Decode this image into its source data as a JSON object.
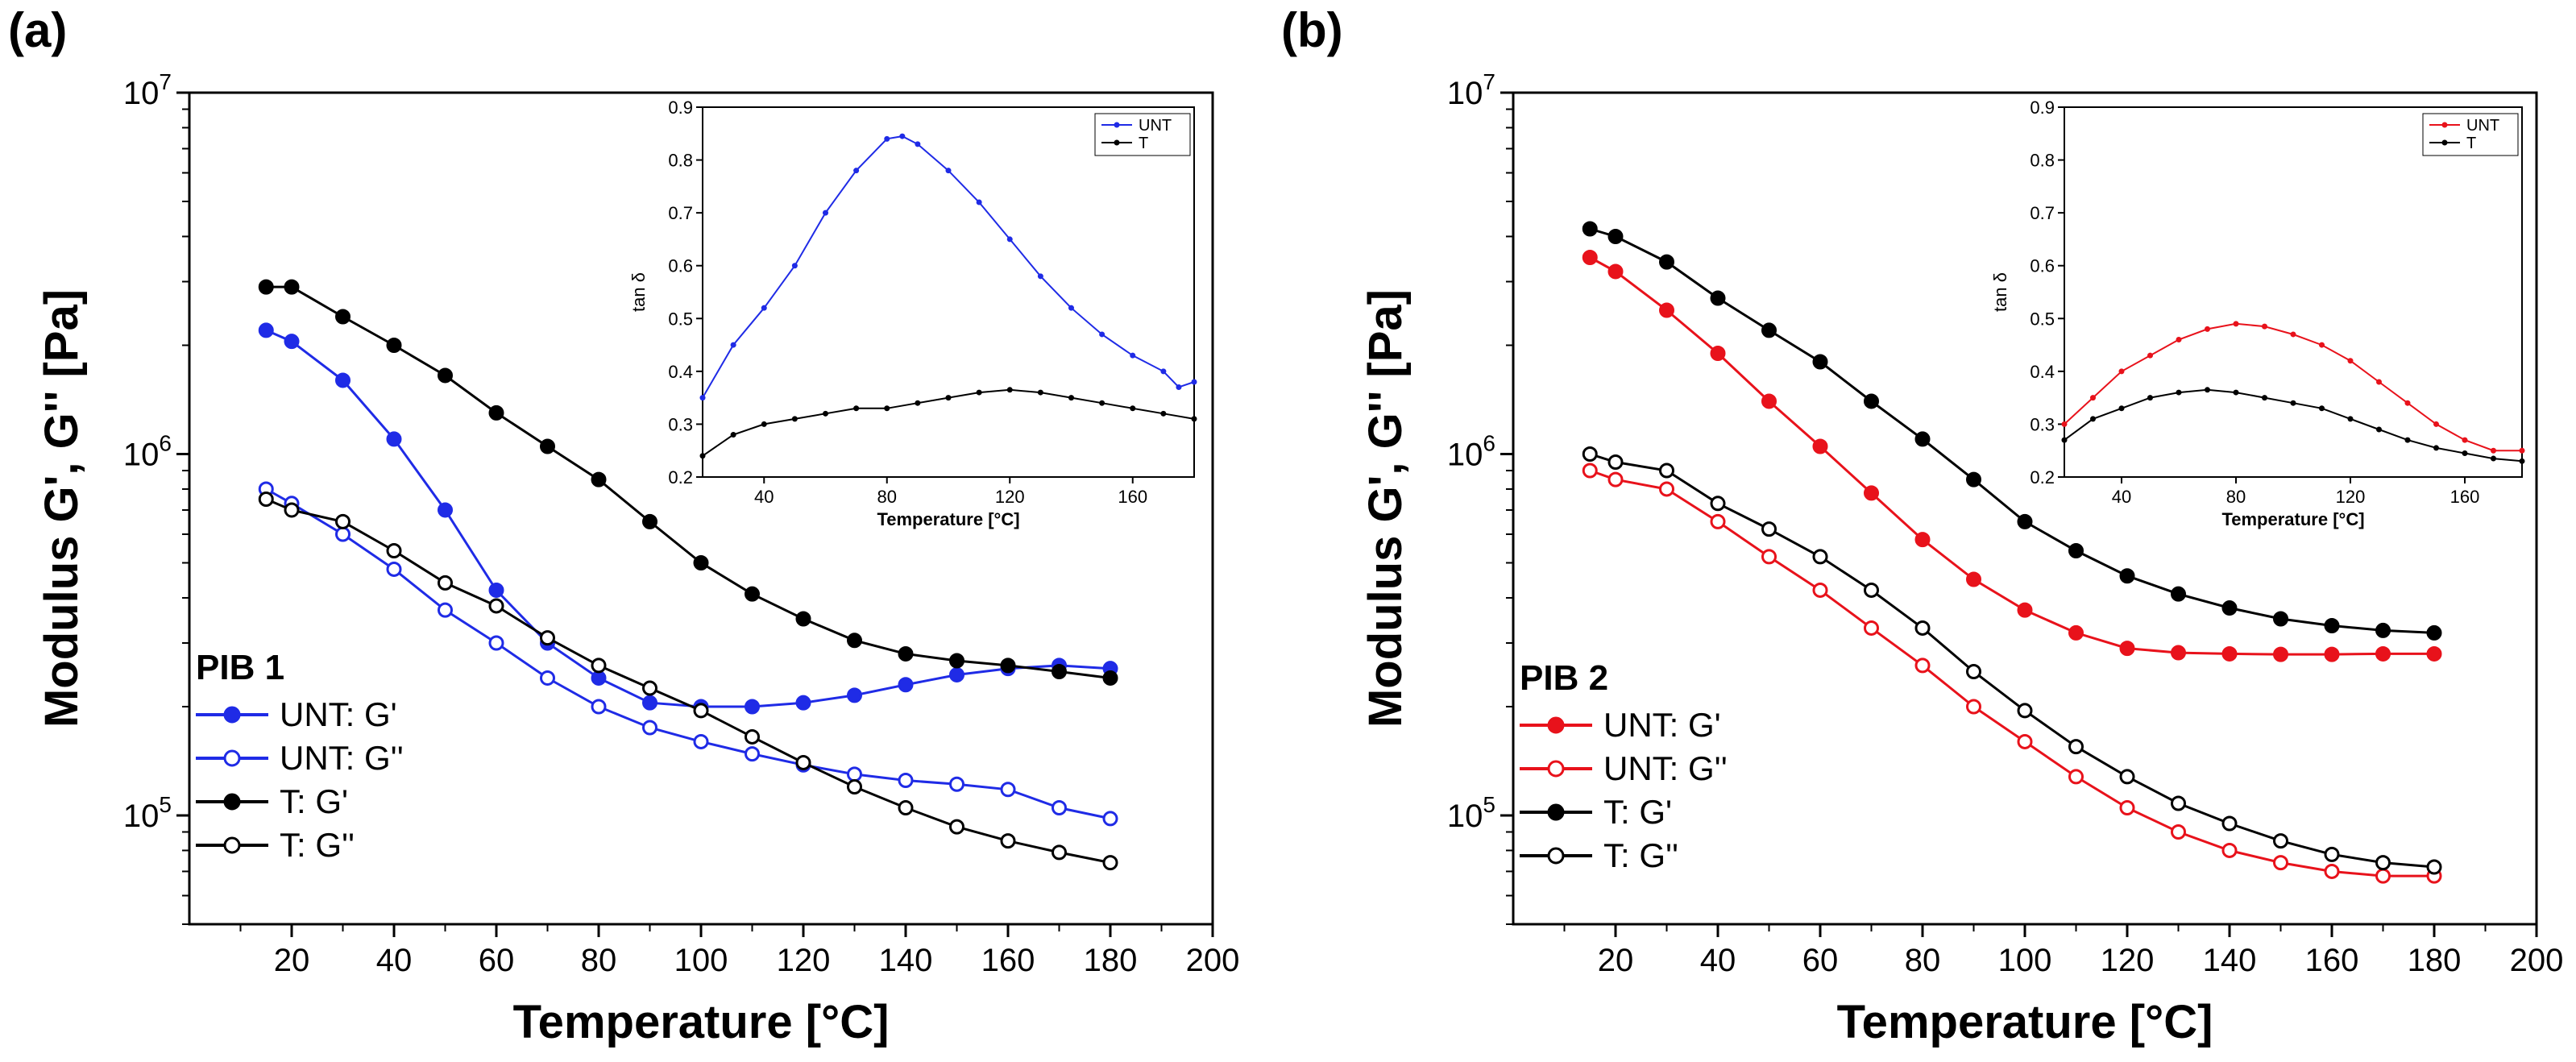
{
  "chart_data": [
    {
      "type": "line",
      "panel_label": "(a)",
      "title": "",
      "legend_title": "PIB 1",
      "xlabel": "Temperature [°C]",
      "ylabel": "Modulus G', G'' [Pa]",
      "xlim": [
        0,
        200
      ],
      "ylim": [
        50000,
        10000000
      ],
      "yscale": "log",
      "x_ticks": [
        "20",
        "40",
        "60",
        "80",
        "100",
        "120",
        "140",
        "160",
        "180",
        "200"
      ],
      "y_ticks": [
        {
          "value": 100000,
          "base": "10",
          "exp": "5"
        },
        {
          "value": 1000000,
          "base": "10",
          "exp": "6"
        },
        {
          "value": 10000000,
          "base": "10",
          "exp": "7"
        }
      ],
      "legend_position": "bottom-left",
      "series": [
        {
          "name": "UNT: G'",
          "color": "#1f2be6",
          "marker": "filled",
          "x": [
            15,
            20,
            30,
            40,
            50,
            60,
            70,
            80,
            90,
            100,
            110,
            120,
            130,
            140,
            150,
            160,
            170,
            180
          ],
          "values": [
            2200000,
            2050000,
            1600000,
            1100000,
            700000,
            420000,
            300000,
            240000,
            205000,
            200000,
            200000,
            205000,
            215000,
            230000,
            245000,
            255000,
            260000,
            255000
          ]
        },
        {
          "name": "UNT: G''",
          "color": "#1f2be6",
          "marker": "open",
          "x": [
            15,
            20,
            30,
            40,
            50,
            60,
            70,
            80,
            90,
            100,
            110,
            120,
            130,
            140,
            150,
            160,
            170,
            180
          ],
          "values": [
            800000,
            730000,
            600000,
            480000,
            370000,
            300000,
            240000,
            200000,
            175000,
            160000,
            148000,
            138000,
            130000,
            125000,
            122000,
            118000,
            105000,
            98000
          ]
        },
        {
          "name": "T: G'",
          "color": "#000000",
          "marker": "filled",
          "x": [
            15,
            20,
            30,
            40,
            50,
            60,
            70,
            80,
            90,
            100,
            110,
            120,
            130,
            140,
            150,
            160,
            170,
            180
          ],
          "values": [
            2900000,
            2900000,
            2400000,
            2000000,
            1650000,
            1300000,
            1050000,
            850000,
            650000,
            500000,
            410000,
            350000,
            305000,
            280000,
            268000,
            260000,
            250000,
            240000
          ]
        },
        {
          "name": "T: G''",
          "color": "#000000",
          "marker": "open",
          "x": [
            15,
            20,
            30,
            40,
            50,
            60,
            70,
            80,
            90,
            100,
            110,
            120,
            130,
            140,
            150,
            160,
            170,
            180
          ],
          "values": [
            750000,
            700000,
            650000,
            540000,
            440000,
            380000,
            310000,
            260000,
            225000,
            195000,
            165000,
            140000,
            120000,
            105000,
            93000,
            85000,
            79000,
            74000
          ]
        }
      ],
      "inset": {
        "xlabel": "Temperature [°C]",
        "ylabel": "tan δ",
        "xlim": [
          20,
          180
        ],
        "ylim": [
          0.2,
          0.9
        ],
        "x_ticks": [
          "40",
          "80",
          "120",
          "160"
        ],
        "y_ticks": [
          "0.2",
          "0.3",
          "0.4",
          "0.5",
          "0.6",
          "0.7",
          "0.8",
          "0.9"
        ],
        "series": [
          {
            "name": "UNT",
            "color": "#1f2be6",
            "x": [
              20,
              30,
              40,
              50,
              60,
              70,
              80,
              85,
              90,
              100,
              110,
              120,
              130,
              140,
              150,
              160,
              170,
              175,
              180
            ],
            "values": [
              0.35,
              0.45,
              0.52,
              0.6,
              0.7,
              0.78,
              0.84,
              0.845,
              0.83,
              0.78,
              0.72,
              0.65,
              0.58,
              0.52,
              0.47,
              0.43,
              0.4,
              0.37,
              0.38
            ]
          },
          {
            "name": "T",
            "color": "#000000",
            "x": [
              20,
              30,
              40,
              50,
              60,
              70,
              80,
              90,
              100,
              110,
              120,
              130,
              140,
              150,
              160,
              170,
              180
            ],
            "values": [
              0.24,
              0.28,
              0.3,
              0.31,
              0.32,
              0.33,
              0.33,
              0.34,
              0.35,
              0.36,
              0.365,
              0.36,
              0.35,
              0.34,
              0.33,
              0.32,
              0.31
            ]
          }
        ]
      }
    },
    {
      "type": "line",
      "panel_label": "(b)",
      "title": "",
      "legend_title": "PIB 2",
      "xlabel": "Temperature [°C]",
      "ylabel": "Modulus G', G'' [Pa]",
      "xlim": [
        0,
        200
      ],
      "ylim": [
        50000,
        10000000
      ],
      "yscale": "log",
      "x_ticks": [
        "20",
        "40",
        "60",
        "80",
        "100",
        "120",
        "140",
        "160",
        "180",
        "200"
      ],
      "y_ticks": [
        {
          "value": 100000,
          "base": "10",
          "exp": "5"
        },
        {
          "value": 1000000,
          "base": "10",
          "exp": "6"
        },
        {
          "value": 10000000,
          "base": "10",
          "exp": "7"
        }
      ],
      "legend_position": "bottom-left",
      "series": [
        {
          "name": "UNT: G'",
          "color": "#e8121b",
          "marker": "filled",
          "x": [
            15,
            20,
            30,
            40,
            50,
            60,
            70,
            80,
            90,
            100,
            110,
            120,
            130,
            140,
            150,
            160,
            170,
            180
          ],
          "values": [
            3500000,
            3200000,
            2500000,
            1900000,
            1400000,
            1050000,
            780000,
            580000,
            450000,
            370000,
            320000,
            290000,
            282000,
            280000,
            279000,
            279000,
            280000,
            280000
          ]
        },
        {
          "name": "UNT: G''",
          "color": "#e8121b",
          "marker": "open",
          "x": [
            15,
            20,
            30,
            40,
            50,
            60,
            70,
            80,
            90,
            100,
            110,
            120,
            130,
            140,
            150,
            160,
            170,
            180
          ],
          "values": [
            900000,
            850000,
            800000,
            650000,
            520000,
            420000,
            330000,
            260000,
            200000,
            160000,
            128000,
            105000,
            90000,
            80000,
            74000,
            70000,
            68000,
            68000
          ]
        },
        {
          "name": "T: G'",
          "color": "#000000",
          "marker": "filled",
          "x": [
            15,
            20,
            30,
            40,
            50,
            60,
            70,
            80,
            90,
            100,
            110,
            120,
            130,
            140,
            150,
            160,
            170,
            180
          ],
          "values": [
            4200000,
            4000000,
            3400000,
            2700000,
            2200000,
            1800000,
            1400000,
            1100000,
            850000,
            650000,
            540000,
            460000,
            410000,
            375000,
            350000,
            335000,
            325000,
            320000
          ]
        },
        {
          "name": "T: G''",
          "color": "#000000",
          "marker": "open",
          "x": [
            15,
            20,
            30,
            40,
            50,
            60,
            70,
            80,
            90,
            100,
            110,
            120,
            130,
            140,
            150,
            160,
            170,
            180
          ],
          "values": [
            1000000,
            950000,
            900000,
            730000,
            620000,
            520000,
            420000,
            330000,
            250000,
            195000,
            155000,
            128000,
            108000,
            95000,
            85000,
            78000,
            74000,
            72000
          ]
        }
      ],
      "inset": {
        "xlabel": "Temperature [°C]",
        "ylabel": "tan δ",
        "xlim": [
          20,
          180
        ],
        "ylim": [
          0.2,
          0.9
        ],
        "x_ticks": [
          "40",
          "80",
          "120",
          "160"
        ],
        "y_ticks": [
          "0.2",
          "0.3",
          "0.4",
          "0.5",
          "0.6",
          "0.7",
          "0.8",
          "0.9"
        ],
        "series": [
          {
            "name": "UNT",
            "color": "#e8121b",
            "x": [
              20,
              30,
              40,
              50,
              60,
              70,
              80,
              90,
              100,
              110,
              120,
              130,
              140,
              150,
              160,
              170,
              180
            ],
            "values": [
              0.3,
              0.35,
              0.4,
              0.43,
              0.46,
              0.48,
              0.49,
              0.485,
              0.47,
              0.45,
              0.42,
              0.38,
              0.34,
              0.3,
              0.27,
              0.25,
              0.25
            ]
          },
          {
            "name": "T",
            "color": "#000000",
            "x": [
              20,
              30,
              40,
              50,
              60,
              70,
              80,
              90,
              100,
              110,
              120,
              130,
              140,
              150,
              160,
              170,
              180
            ],
            "values": [
              0.27,
              0.31,
              0.33,
              0.35,
              0.36,
              0.365,
              0.36,
              0.35,
              0.34,
              0.33,
              0.31,
              0.29,
              0.27,
              0.255,
              0.245,
              0.235,
              0.23
            ]
          }
        ]
      }
    }
  ]
}
